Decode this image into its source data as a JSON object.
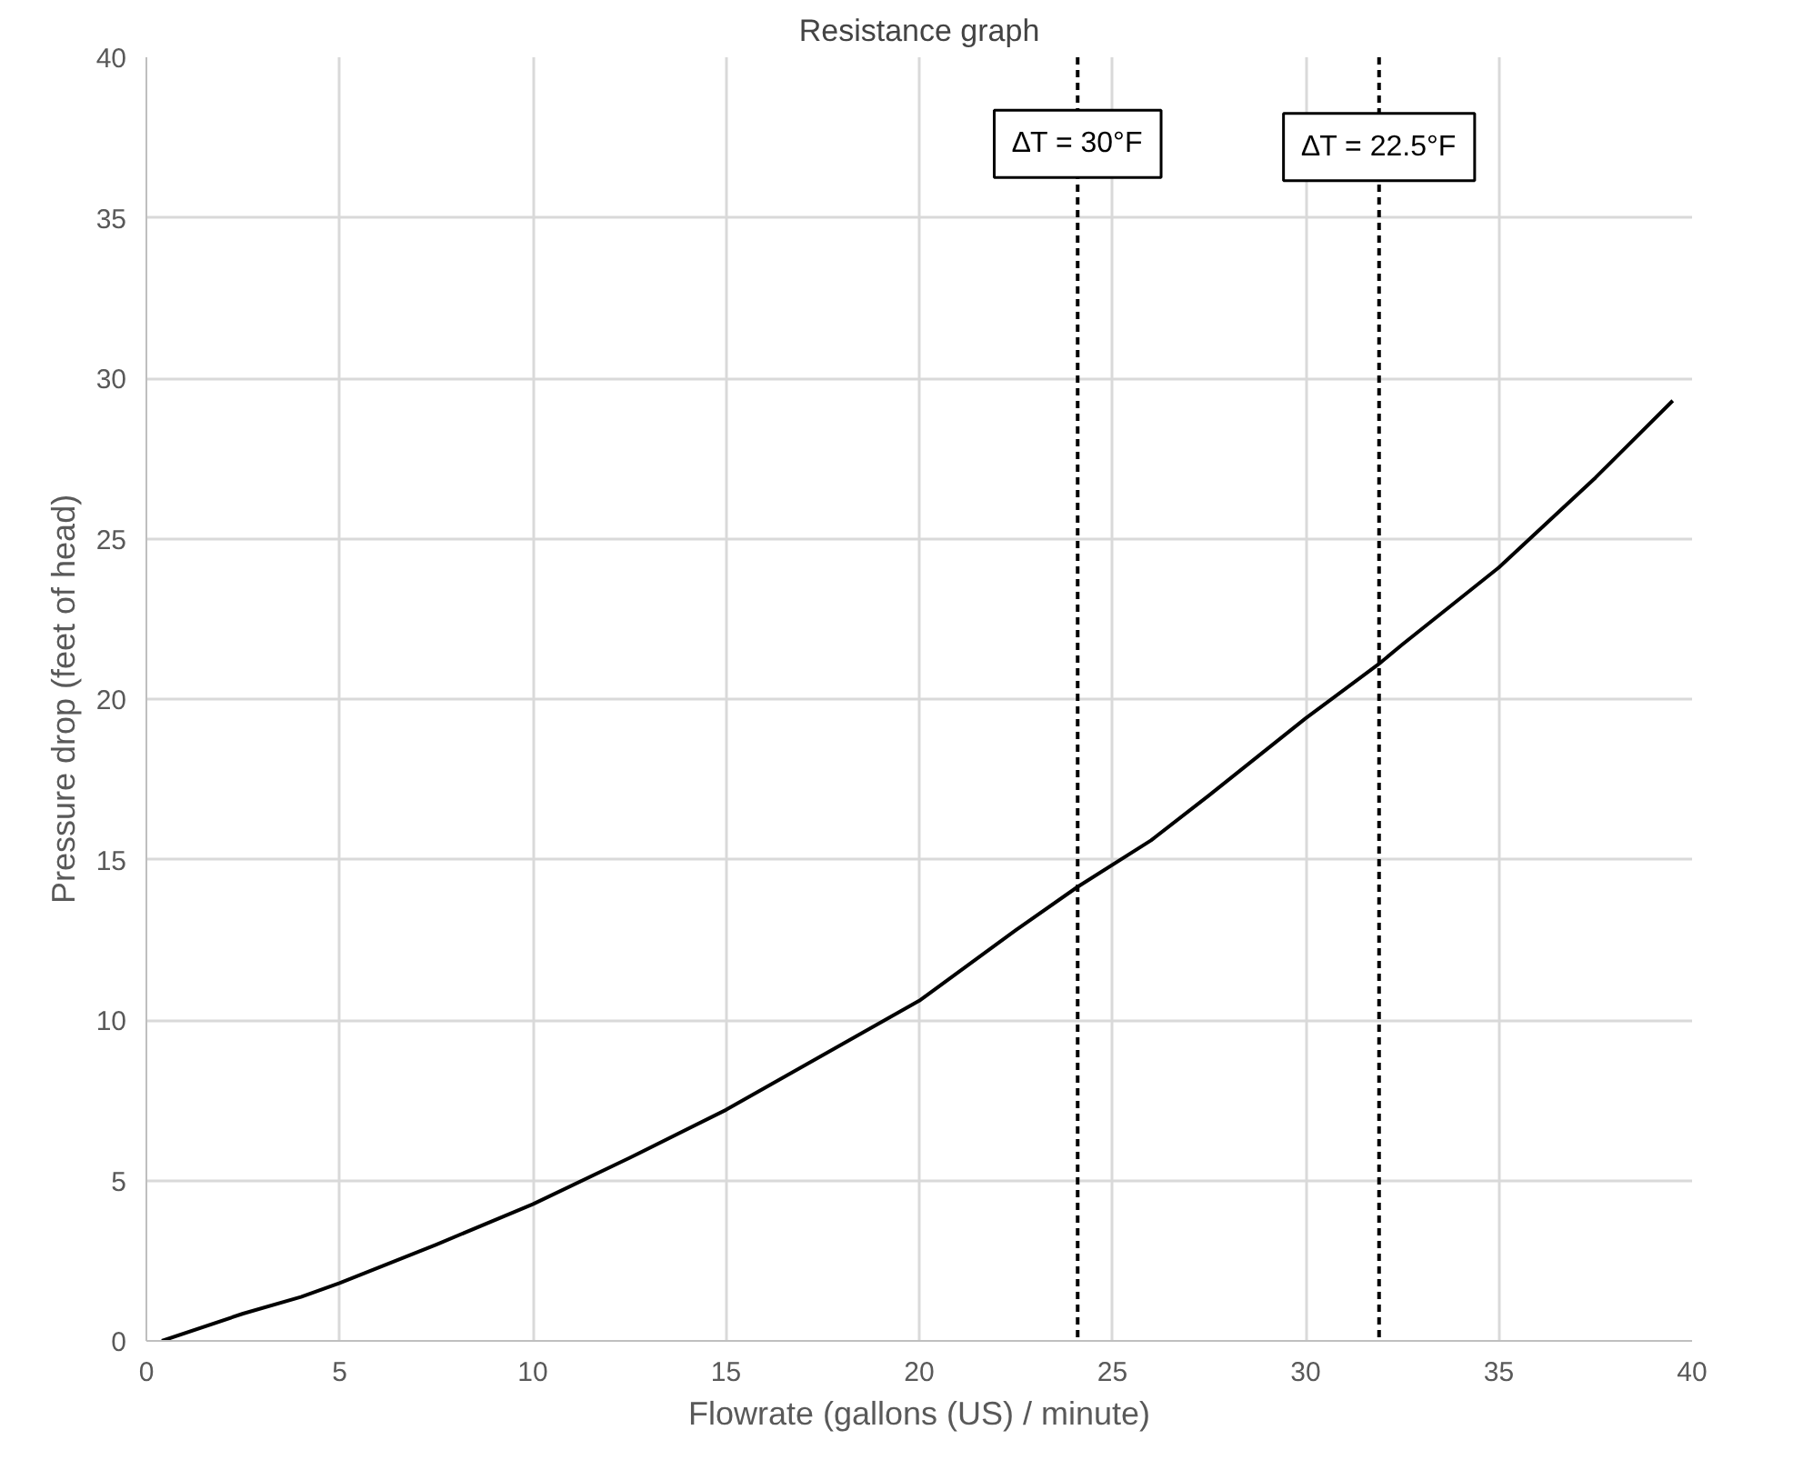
{
  "chart_data": {
    "type": "line",
    "title": "Resistance graph",
    "xlabel": "Flowrate (gallons (US) / minute)",
    "ylabel": "Pressure drop (feet of head)",
    "x": [
      0.4,
      2.5,
      4,
      5,
      7.5,
      10,
      12.5,
      15,
      17.5,
      20,
      22.5,
      24.1,
      26,
      27.5,
      30,
      31.9,
      32.5,
      35,
      37.5,
      39.5
    ],
    "series": [
      {
        "color": "#000000",
        "values": [
          0,
          0.85,
          1.37,
          1.8,
          3.0,
          4.26,
          5.7,
          7.2,
          8.9,
          10.6,
          12.8,
          14.15,
          15.6,
          17.0,
          19.4,
          21.1,
          21.7,
          24.1,
          26.9,
          29.3
        ]
      }
    ],
    "xlim": [
      0,
      40
    ],
    "xticks": [
      0,
      5,
      10,
      15,
      20,
      25,
      30,
      35,
      40
    ],
    "ylim": [
      0,
      40
    ],
    "yticks": [
      0,
      5,
      10,
      15,
      20,
      25,
      30,
      35,
      40
    ],
    "grid": true,
    "marker": "none",
    "line_style": "solid",
    "ref_lines": [
      {
        "axis": "x",
        "value": 24.1,
        "color": "#000000",
        "line_style": "dashed"
      },
      {
        "axis": "x",
        "value": 31.9,
        "color": "#000000",
        "line_style": "dashed"
      }
    ],
    "annotations": [
      {
        "text": "∆T = 30°F",
        "x": 24.1,
        "y": 37.3
      },
      {
        "text": "∆T = 22.5°F",
        "x": 31.9,
        "y": 37.2
      }
    ]
  }
}
